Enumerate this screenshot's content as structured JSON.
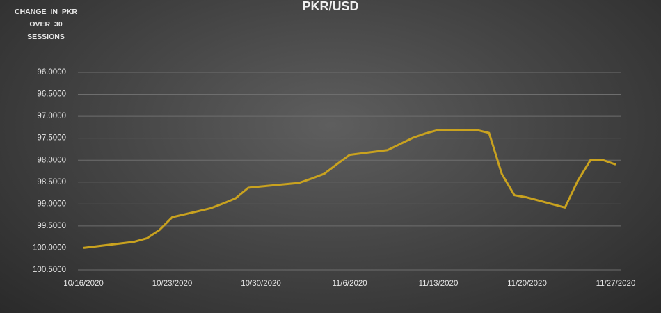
{
  "chart_data": {
    "type": "line",
    "title": "PKR/USD",
    "annotation": "CHANGE IN PKR OVER 30 SESSIONS",
    "x": [
      "10/16/2020",
      "10/20/2020",
      "10/21/2020",
      "10/22/2020",
      "10/23/2020",
      "10/26/2020",
      "10/27/2020",
      "10/28/2020",
      "10/29/2020",
      "10/30/2020",
      "11/2/2020",
      "11/3/2020",
      "11/4/2020",
      "11/5/2020",
      "11/6/2020",
      "11/9/2020",
      "11/10/2020",
      "11/11/2020",
      "11/12/2020",
      "11/13/2020",
      "11/16/2020",
      "11/17/2020",
      "11/18/2020",
      "11/19/2020",
      "11/20/2020",
      "11/23/2020",
      "11/24/2020",
      "11/25/2020",
      "11/26/2020",
      "11/27/2020"
    ],
    "series": [
      {
        "name": "PKR/USD",
        "color": "#c9a21f",
        "values": [
          100.0,
          99.86,
          99.78,
          99.59,
          99.3,
          99.1,
          98.99,
          98.87,
          98.63,
          98.6,
          98.52,
          98.42,
          98.31,
          98.09,
          97.88,
          97.77,
          97.63,
          97.49,
          97.39,
          97.31,
          97.31,
          97.38,
          98.31,
          98.8,
          98.85,
          99.08,
          98.47,
          98.0,
          98.0,
          98.1
        ]
      }
    ],
    "xlim": [
      "10/16/2020",
      "11/27/2020"
    ],
    "xticks": [
      "10/16/2020",
      "10/23/2020",
      "10/30/2020",
      "11/6/2020",
      "11/13/2020",
      "11/20/2020",
      "11/27/2020"
    ],
    "ylim": [
      96,
      100.5
    ],
    "y_reversed": true,
    "yticks": [
      {
        "value": 96,
        "label": "96.0000"
      },
      {
        "value": 96.5,
        "label": "96.5000"
      },
      {
        "value": 97,
        "label": "97.0000"
      },
      {
        "value": 97.5,
        "label": "97.5000"
      },
      {
        "value": 98,
        "label": "98.0000"
      },
      {
        "value": 98.5,
        "label": "98.5000"
      },
      {
        "value": 99,
        "label": "99.0000"
      },
      {
        "value": 99.5,
        "label": "99.5000"
      },
      {
        "value": 100,
        "label": "100.0000"
      },
      {
        "value": 100.5,
        "label": "100.5000"
      }
    ],
    "grid": true
  }
}
